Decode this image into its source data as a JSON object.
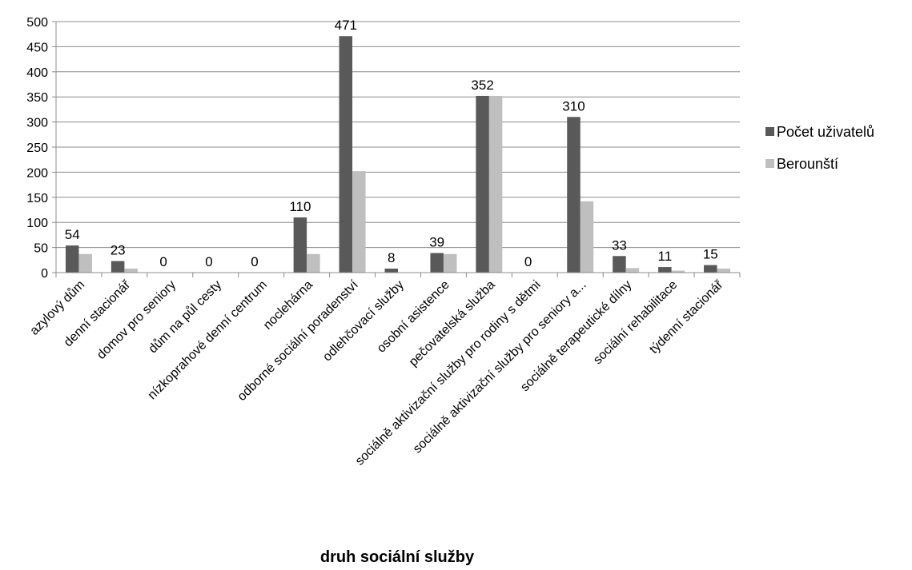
{
  "chart_data": {
    "type": "bar",
    "xlabel": "druh sociální služby",
    "ylabel": "",
    "ylim": [
      0,
      500
    ],
    "yticks": [
      0,
      50,
      100,
      150,
      200,
      250,
      300,
      350,
      400,
      450,
      500
    ],
    "grid": true,
    "legend_position": "right",
    "categories": [
      "azylový dům",
      "denní stacionář",
      "domov pro seniory",
      "dům na půl cesty",
      "nízkoprahové denní centrum",
      "noclehárna",
      "odborné sociální poradenství",
      "odlehčovací služby",
      "osobní asistence",
      "pečovatelská služba",
      "sociálně aktivizační služby pro rodiny s dětmi",
      "sociálně aktivizační služby pro seniory a...",
      "sociálně terapeutické dílny",
      "sociální rehabilitace",
      "týdenní stacionář"
    ],
    "series": [
      {
        "name": "Počet uživatelů",
        "color": "#595959",
        "values": [
          54,
          23,
          0,
          0,
          0,
          110,
          471,
          8,
          39,
          352,
          0,
          310,
          33,
          11,
          15
        ],
        "data_labels": true
      },
      {
        "name": "Berounští",
        "color": "#bfbfbf",
        "values": [
          37,
          8,
          0,
          0,
          0,
          37,
          202,
          0,
          37,
          352,
          0,
          142,
          9,
          4,
          8
        ],
        "data_labels": false
      }
    ]
  }
}
